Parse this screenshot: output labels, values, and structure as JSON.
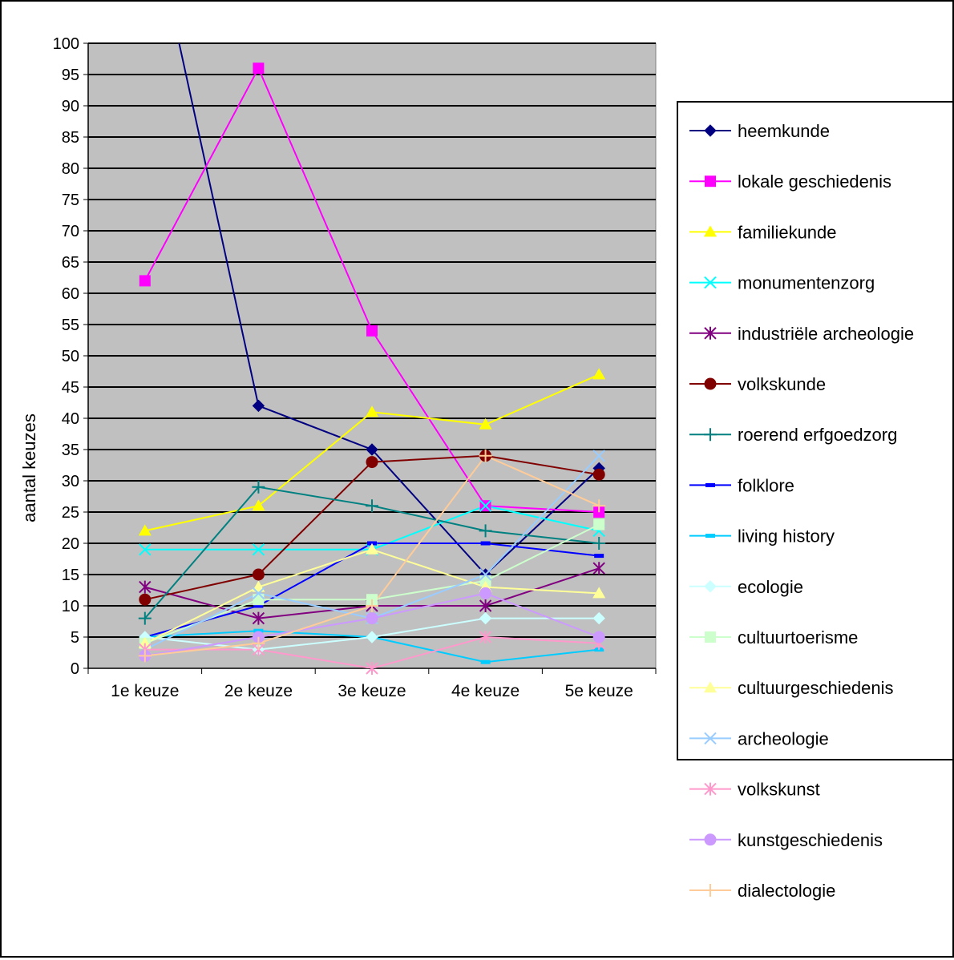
{
  "chart_data": {
    "type": "line",
    "ylabel": "aantal keuzes",
    "ylim": [
      0,
      100
    ],
    "yticks": [
      0,
      5,
      10,
      15,
      20,
      25,
      30,
      35,
      40,
      45,
      50,
      55,
      60,
      65,
      70,
      75,
      80,
      85,
      90,
      95,
      100
    ],
    "categories": [
      "1e keuze",
      "2e keuze",
      "3e keuze",
      "4e keuze",
      "5e keuze"
    ],
    "plot_background": "#c0c0c0",
    "grid": true,
    "legend_position": "right",
    "series": [
      {
        "name": "heemkunde",
        "values": [
          125,
          42,
          35,
          15,
          32
        ],
        "color": "#000080",
        "marker": "diamond"
      },
      {
        "name": "lokale geschiedenis",
        "values": [
          62,
          96,
          54,
          26,
          25
        ],
        "color": "#ff00ff",
        "marker": "square"
      },
      {
        "name": "familiekunde",
        "values": [
          22,
          26,
          41,
          39,
          47
        ],
        "color": "#ffff00",
        "marker": "triangle"
      },
      {
        "name": "monumentenzorg",
        "values": [
          19,
          19,
          19,
          26,
          22
        ],
        "color": "#00ffff",
        "marker": "x"
      },
      {
        "name": "industriële archeologie",
        "values": [
          13,
          8,
          10,
          10,
          16
        ],
        "color": "#800080",
        "marker": "star"
      },
      {
        "name": "volkskunde",
        "values": [
          11,
          15,
          33,
          34,
          31
        ],
        "color": "#800000",
        "marker": "circle"
      },
      {
        "name": "roerend erfgoedzorg",
        "values": [
          8,
          29,
          26,
          22,
          20
        ],
        "color": "#008080",
        "marker": "plus"
      },
      {
        "name": "folklore",
        "values": [
          5,
          10,
          20,
          20,
          18
        ],
        "color": "#0000ff",
        "marker": "dash"
      },
      {
        "name": "living history",
        "values": [
          5,
          6,
          5,
          1,
          3
        ],
        "color": "#00ccff",
        "marker": "dash"
      },
      {
        "name": "ecologie",
        "values": [
          5,
          3,
          5,
          8,
          8
        ],
        "color": "#ccffff",
        "marker": "diamond"
      },
      {
        "name": "cultuurtoerisme",
        "values": [
          4,
          11,
          11,
          14,
          23
        ],
        "color": "#ccffcc",
        "marker": "square"
      },
      {
        "name": "cultuurgeschiedenis",
        "values": [
          4,
          13,
          19,
          13,
          12
        ],
        "color": "#ffff99",
        "marker": "triangle"
      },
      {
        "name": "archeologie",
        "values": [
          3,
          12,
          8,
          15,
          34
        ],
        "color": "#99ccff",
        "marker": "x"
      },
      {
        "name": "volkskunst",
        "values": [
          3,
          3,
          0,
          5,
          4
        ],
        "color": "#ff99cc",
        "marker": "star"
      },
      {
        "name": "kunstgeschiedenis",
        "values": [
          2,
          5,
          8,
          12,
          5
        ],
        "color": "#cc99ff",
        "marker": "circle"
      },
      {
        "name": "dialectologie",
        "values": [
          2,
          4,
          10,
          34,
          26
        ],
        "color": "#ffcc99",
        "marker": "plus"
      }
    ]
  }
}
